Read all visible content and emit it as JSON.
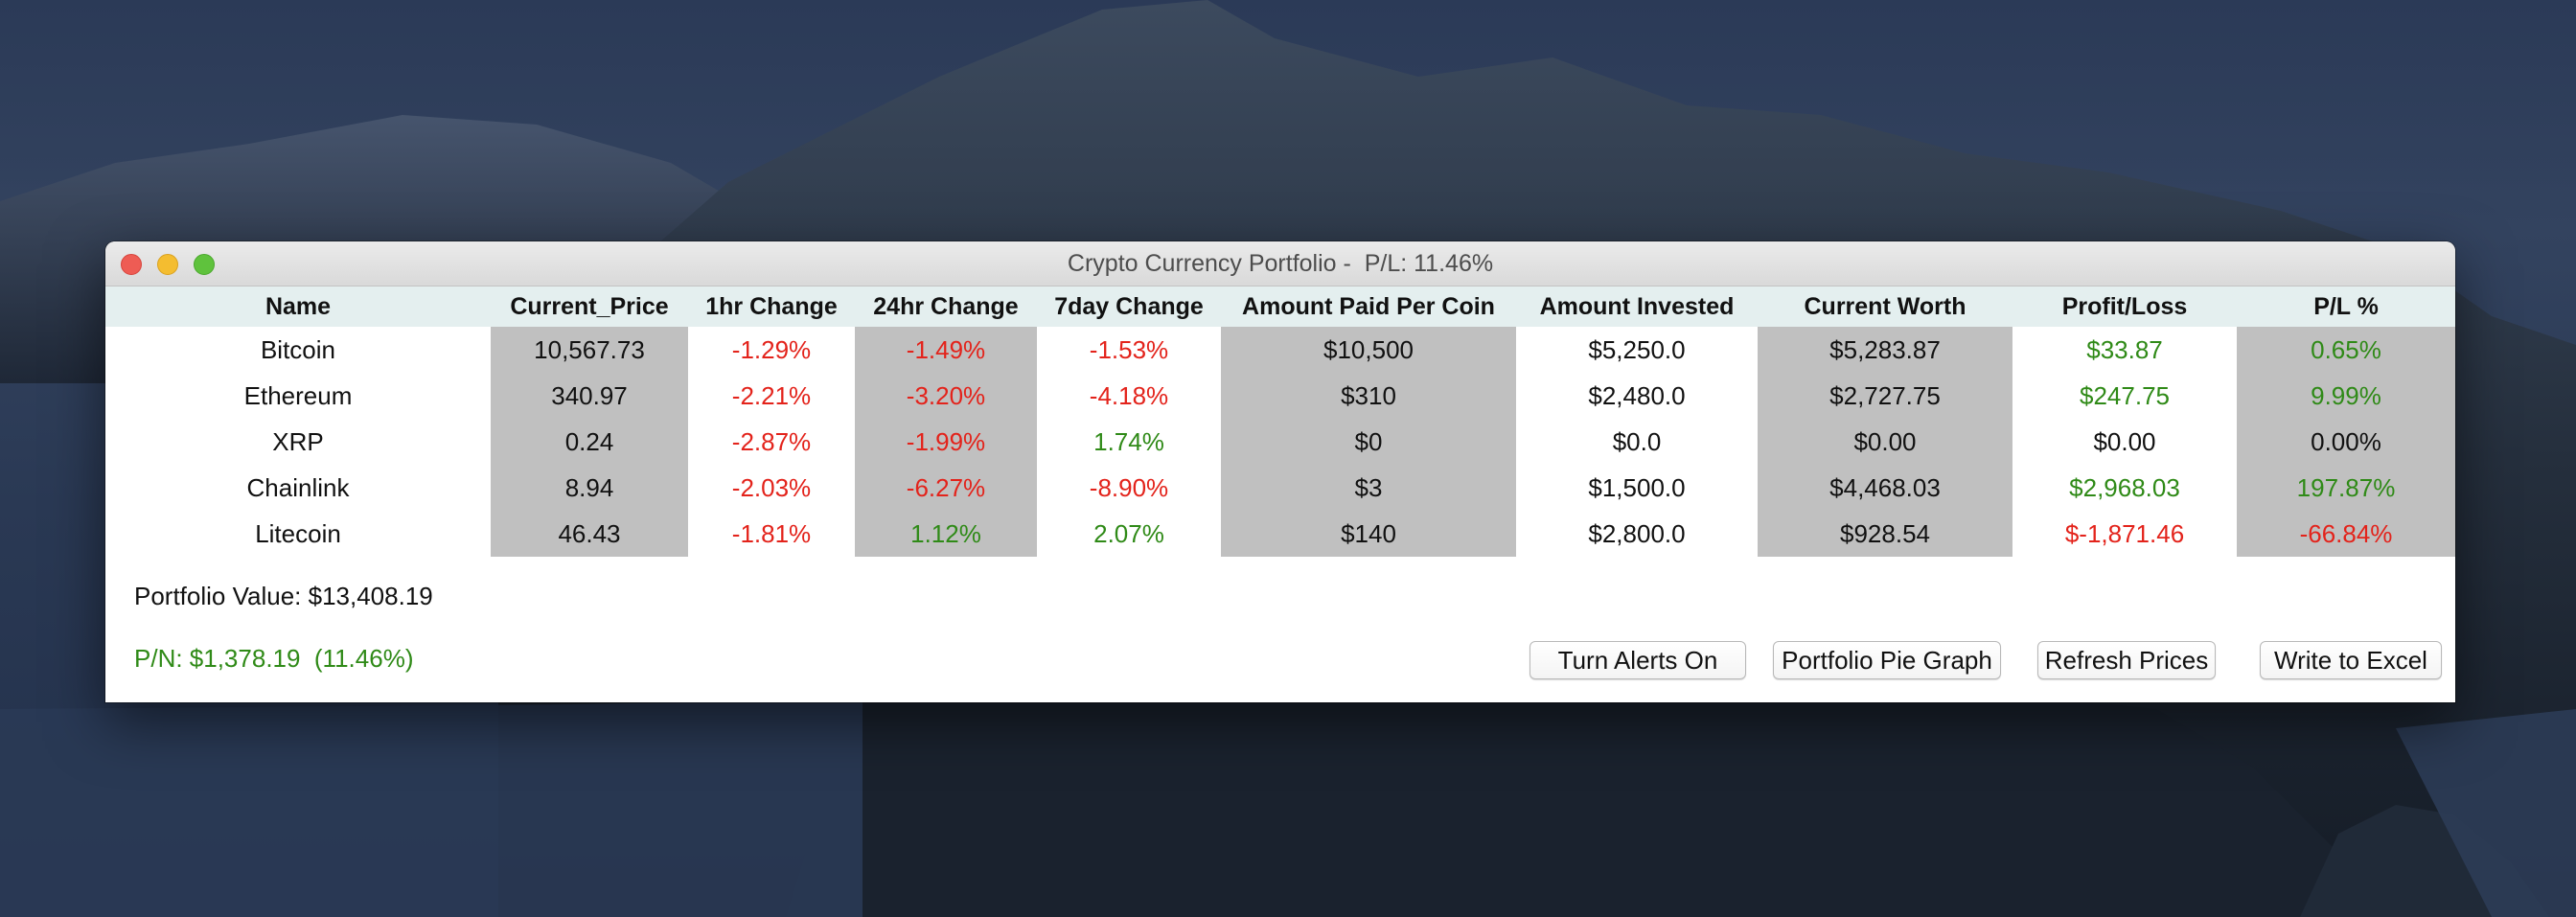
{
  "window": {
    "title": "Crypto Currency Portfolio -  P/L: 11.46%"
  },
  "table": {
    "headers": [
      "Name",
      "Current_Price",
      "1hr Change",
      "24hr Change",
      "7day Change",
      "Amount Paid Per Coin",
      "Amount Invested",
      "Current Worth",
      "Profit/Loss",
      "P/L %"
    ],
    "rows": [
      {
        "name": "Bitcoin",
        "price": "10,567.73",
        "h1": "-1.29%",
        "h24": "-1.49%",
        "d7": "-1.53%",
        "paid": "$10,500",
        "invested": "$5,250.0",
        "worth": "$5,283.87",
        "pl": "$33.87",
        "plp": "0.65%"
      },
      {
        "name": "Ethereum",
        "price": "340.97",
        "h1": "-2.21%",
        "h24": "-3.20%",
        "d7": "-4.18%",
        "paid": "$310",
        "invested": "$2,480.0",
        "worth": "$2,727.75",
        "pl": "$247.75",
        "plp": "9.99%"
      },
      {
        "name": "XRP",
        "price": "0.24",
        "h1": "-2.87%",
        "h24": "-1.99%",
        "d7": "1.74%",
        "paid": "$0",
        "invested": "$0.0",
        "worth": "$0.00",
        "pl": "$0.00",
        "plp": "0.00%"
      },
      {
        "name": "Chainlink",
        "price": "8.94",
        "h1": "-2.03%",
        "h24": "-6.27%",
        "d7": "-8.90%",
        "paid": "$3",
        "invested": "$1,500.0",
        "worth": "$4,468.03",
        "pl": "$2,968.03",
        "plp": "197.87%"
      },
      {
        "name": "Litecoin",
        "price": "46.43",
        "h1": "-1.81%",
        "h24": "1.12%",
        "d7": "2.07%",
        "paid": "$140",
        "invested": "$2,800.0",
        "worth": "$928.54",
        "pl": "$-1,871.46",
        "plp": "-66.84%"
      }
    ]
  },
  "footer": {
    "portfolio_value": "Portfolio Value: $13,408.19",
    "pn": "P/N: $1,378.19  (11.46%)"
  },
  "buttons": {
    "alerts": "Turn Alerts On",
    "pie": "Portfolio Pie Graph",
    "refresh": "Refresh Prices",
    "excel": "Write to Excel"
  },
  "colors": {
    "negative": "#e3231b",
    "positive": "#2f8a17",
    "header_bg": "#e4efef",
    "shaded_column": "#c0c0c0"
  },
  "icons": [
    "close-icon",
    "minimize-icon",
    "maximize-icon"
  ]
}
